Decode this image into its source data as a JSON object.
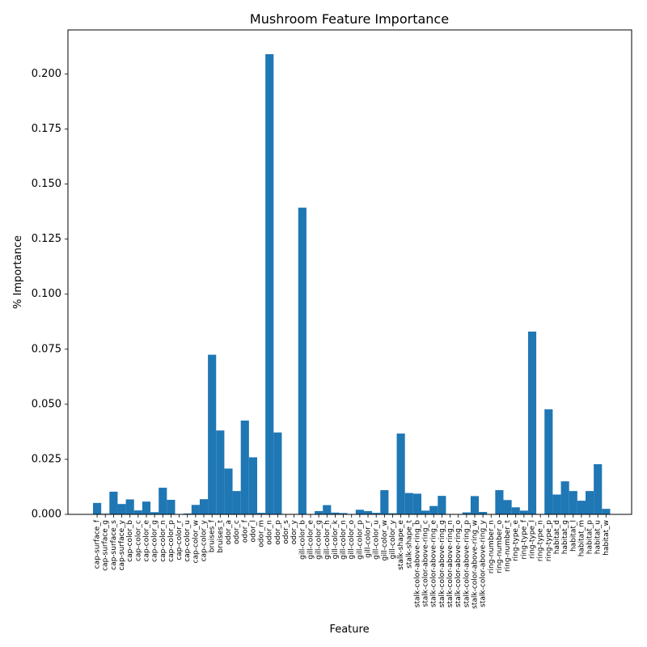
{
  "chart_data": {
    "type": "bar",
    "title": "Mushroom Feature Importance",
    "xlabel": "Feature",
    "ylabel": "% Importance",
    "ylim": [
      0,
      0.22
    ],
    "yticks": [
      0.0,
      0.025,
      0.05,
      0.075,
      0.1,
      0.125,
      0.15,
      0.175,
      0.2
    ],
    "ytick_labels": [
      "0.000",
      "0.025",
      "0.050",
      "0.075",
      "0.100",
      "0.125",
      "0.150",
      "0.175",
      "0.200"
    ],
    "grid": false,
    "bar_color": "#1f77b4",
    "categories": [
      "cap-surface_f",
      "cap-surface_g",
      "cap-surface_s",
      "cap-surface_y",
      "cap-color_b",
      "cap-color_c",
      "cap-color_e",
      "cap-color_g",
      "cap-color_n",
      "cap-color_p",
      "cap-color_r",
      "cap-color_u",
      "cap-color_w",
      "cap-color_y",
      "bruises_f",
      "bruises_t",
      "odor_a",
      "odor_c",
      "odor_f",
      "odor_l",
      "odor_m",
      "odor_n",
      "odor_p",
      "odor_s",
      "odor_y",
      "gill-color_b",
      "gill-color_e",
      "gill-color_g",
      "gill-color_h",
      "gill-color_k",
      "gill-color_n",
      "gill-color_o",
      "gill-color_p",
      "gill-color_r",
      "gill-color_u",
      "gill-color_w",
      "gill-color_y",
      "stalk-shape_e",
      "stalk-shape_t",
      "stalk-color-above-ring_b",
      "stalk-color-above-ring_c",
      "stalk-color-above-ring_e",
      "stalk-color-above-ring_g",
      "stalk-color-above-ring_n",
      "stalk-color-above-ring_o",
      "stalk-color-above-ring_p",
      "stalk-color-above-ring_w",
      "stalk-color-above-ring_y",
      "ring-number_n",
      "ring-number_o",
      "ring-number_t",
      "ring-type_e",
      "ring-type_f",
      "ring-type_l",
      "ring-type_n",
      "ring-type_p",
      "habitat_d",
      "habitat_g",
      "habitat_l",
      "habitat_m",
      "habitat_p",
      "habitat_u",
      "habitat_w"
    ],
    "values": [
      0.0052,
      0.0003,
      0.0103,
      0.0047,
      0.0068,
      0.0018,
      0.0058,
      0.001,
      0.0121,
      0.0066,
      0.0001,
      0.0004,
      0.0043,
      0.0069,
      0.0725,
      0.0381,
      0.0208,
      0.0106,
      0.0426,
      0.0259,
      0.0007,
      0.209,
      0.0372,
      0.0,
      0.0,
      0.1393,
      0.0001,
      0.0015,
      0.0042,
      0.0008,
      0.0006,
      0.0002,
      0.0021,
      0.0015,
      0.0007,
      0.011,
      0.0005,
      0.0367,
      0.0097,
      0.0094,
      0.0017,
      0.0038,
      0.0084,
      0.0001,
      0.0001,
      0.0009,
      0.0083,
      0.0011,
      0.0001,
      0.011,
      0.0065,
      0.0032,
      0.0017,
      0.083,
      0.0002,
      0.0477,
      0.009,
      0.015,
      0.0106,
      0.0062,
      0.0106,
      0.0228,
      0.0025
    ]
  }
}
